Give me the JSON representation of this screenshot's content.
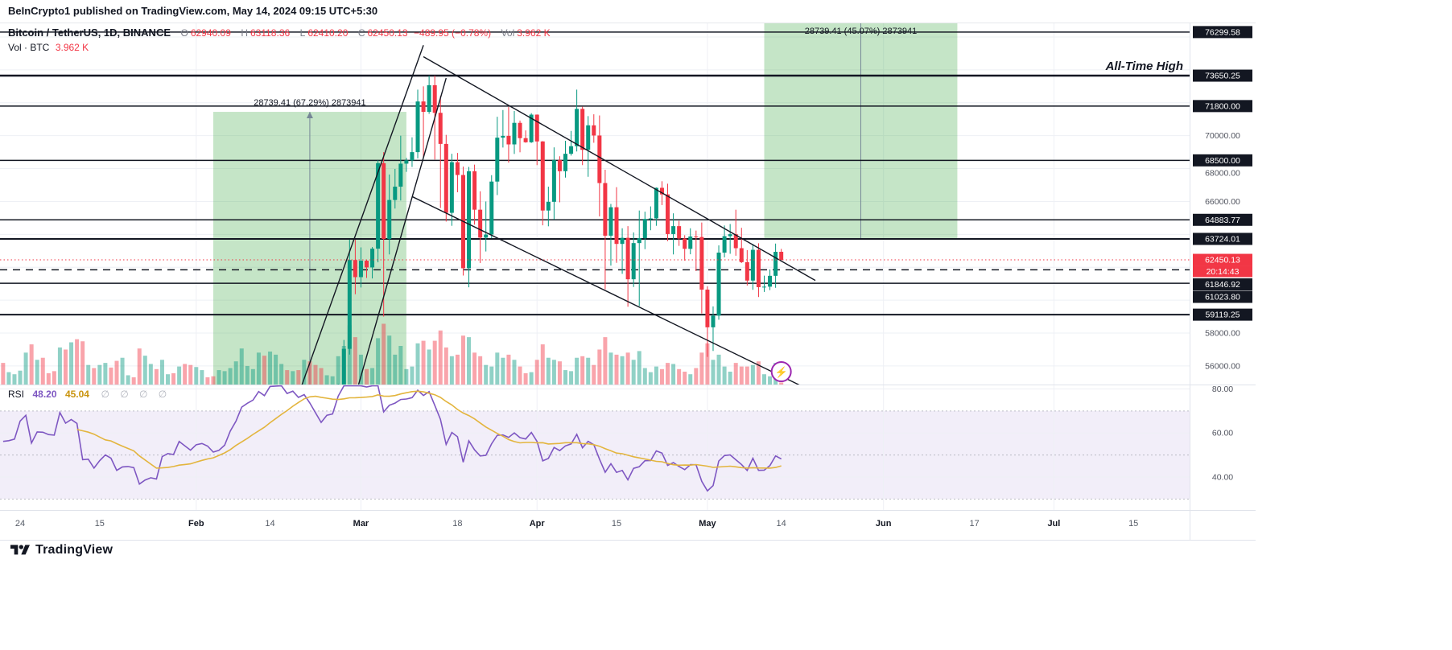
{
  "attribution": "BeInCrypto1 published on TradingView.com, May 14, 2024 09:15 UTC+5:30",
  "legend": {
    "symbol": "Bitcoin / TetherUS, 1D, BINANCE",
    "ohlc": {
      "o_label": "O",
      "o": "62940.09",
      "h_label": "H",
      "h": "63118.36",
      "l_label": "L",
      "l": "62410.20",
      "c_label": "C",
      "c": "62450.13"
    },
    "change": "−489.95 (−0.78%)",
    "vol_label": "Vol",
    "vol": "3.962 K",
    "row2_label": "Vol · BTC",
    "row2_value": "3.962 K"
  },
  "rsi_legend": {
    "name": "RSI",
    "value": "48.20",
    "ma_value": "45.04",
    "extras": "∅ ∅ ∅ ∅"
  },
  "footer": {
    "brand": "TradingView"
  },
  "colors": {
    "up": "#089981",
    "down": "#f23645",
    "vol_up": "rgba(8,153,129,0.45)",
    "vol_down": "rgba(242,54,69,0.45)",
    "box": "rgba(76,175,80,0.32)",
    "line": "#131722",
    "rsi": "#7e57c2",
    "rsi_ma": "#e3b53e",
    "grid": "#eef0f5",
    "band": "rgba(126,87,194,0.10)",
    "marker": "#9c27b0",
    "axis_text": "#50535e"
  },
  "chart_data": {
    "type": "candlestick",
    "title": "Bitcoin / TetherUS, 1D, BINANCE",
    "start_date": "2023-12-28",
    "end_date": "2024-05-14",
    "note": "daily OHLCV, volume in thousands of BTC, values approximate read from chart",
    "ohlcv": [
      [
        43470,
        43800,
        42300,
        42600,
        38
      ],
      [
        42600,
        43110,
        41400,
        42070,
        42
      ],
      [
        42070,
        42600,
        41500,
        42140,
        24
      ],
      [
        42140,
        42900,
        41960,
        42280,
        20
      ],
      [
        42280,
        44180,
        42180,
        44180,
        27
      ],
      [
        44180,
        45880,
        44150,
        44940,
        62
      ],
      [
        44940,
        45500,
        40750,
        42840,
        78
      ],
      [
        42840,
        44730,
        42640,
        44180,
        48
      ],
      [
        44180,
        44350,
        42450,
        44150,
        52
      ],
      [
        44150,
        44210,
        43400,
        43970,
        22
      ],
      [
        43970,
        44470,
        43210,
        43930,
        26
      ],
      [
        43930,
        47210,
        43180,
        46950,
        72
      ],
      [
        46950,
        47970,
        44750,
        46110,
        68
      ],
      [
        46110,
        47700,
        44300,
        46650,
        82
      ],
      [
        46650,
        48970,
        45600,
        46350,
        88
      ],
      [
        46350,
        46510,
        41500,
        42780,
        84
      ],
      [
        42780,
        43250,
        42440,
        42840,
        38
      ],
      [
        42840,
        43080,
        41720,
        41720,
        32
      ],
      [
        41720,
        43400,
        41680,
        42510,
        38
      ],
      [
        42510,
        43580,
        42050,
        43140,
        42
      ],
      [
        43140,
        43200,
        42200,
        42780,
        33
      ],
      [
        42780,
        42930,
        40640,
        41330,
        46
      ],
      [
        41330,
        42150,
        40280,
        41660,
        52
      ],
      [
        41660,
        41870,
        41440,
        41700,
        18
      ],
      [
        41700,
        41880,
        41500,
        41580,
        14
      ],
      [
        41580,
        41690,
        38500,
        39570,
        70
      ],
      [
        39570,
        40170,
        38560,
        39900,
        56
      ],
      [
        39900,
        40110,
        39480,
        40080,
        40
      ],
      [
        40080,
        40300,
        39550,
        39940,
        30
      ],
      [
        39940,
        42200,
        39830,
        41820,
        48
      ],
      [
        41820,
        42190,
        41390,
        42120,
        20
      ],
      [
        42120,
        42840,
        41620,
        42030,
        22
      ],
      [
        42030,
        43310,
        41790,
        43300,
        35
      ],
      [
        43300,
        43880,
        42680,
        42940,
        40
      ],
      [
        42940,
        43740,
        42270,
        42580,
        38
      ],
      [
        42580,
        43250,
        41880,
        43080,
        34
      ],
      [
        43080,
        43440,
        42560,
        43190,
        28
      ],
      [
        43190,
        43350,
        42880,
        43010,
        14
      ],
      [
        43010,
        43120,
        42400,
        42580,
        16
      ],
      [
        42580,
        43550,
        42260,
        42710,
        28
      ],
      [
        42710,
        43400,
        42570,
        43090,
        26
      ],
      [
        43090,
        44380,
        42790,
        44280,
        32
      ],
      [
        44280,
        45600,
        44230,
        45290,
        45
      ],
      [
        45290,
        48170,
        45240,
        47130,
        70
      ],
      [
        47130,
        48200,
        46840,
        47750,
        36
      ],
      [
        47750,
        48550,
        47570,
        48290,
        30
      ],
      [
        48290,
        50330,
        47710,
        49940,
        62
      ],
      [
        49940,
        50370,
        48350,
        49700,
        56
      ],
      [
        49700,
        52070,
        49230,
        51800,
        64
      ],
      [
        51800,
        52820,
        51340,
        51900,
        58
      ],
      [
        51900,
        52580,
        51560,
        52120,
        40
      ],
      [
        52120,
        52190,
        50640,
        51660,
        28
      ],
      [
        51660,
        52380,
        51170,
        52120,
        26
      ],
      [
        52120,
        52490,
        51680,
        51780,
        28
      ],
      [
        51780,
        52930,
        50750,
        52280,
        48
      ],
      [
        52280,
        52370,
        50620,
        51840,
        45
      ],
      [
        51840,
        52070,
        50940,
        51300,
        38
      ],
      [
        51300,
        51540,
        50530,
        50740,
        32
      ],
      [
        50740,
        51700,
        50580,
        51570,
        18
      ],
      [
        51570,
        51960,
        51290,
        51730,
        16
      ],
      [
        51730,
        54910,
        50930,
        54500,
        55
      ],
      [
        54500,
        57580,
        54450,
        57040,
        75
      ],
      [
        57040,
        63680,
        56690,
        62440,
        115
      ],
      [
        62440,
        63670,
        60360,
        61400,
        92
      ],
      [
        61400,
        63210,
        60770,
        62400,
        58
      ],
      [
        62400,
        62470,
        61350,
        61990,
        30
      ],
      [
        61990,
        63230,
        61320,
        63130,
        32
      ],
      [
        63130,
        68500,
        62300,
        68330,
        90
      ],
      [
        68330,
        69000,
        59000,
        63720,
        118
      ],
      [
        63720,
        67640,
        62780,
        66090,
        95
      ],
      [
        66090,
        67980,
        65570,
        66900,
        58
      ],
      [
        66900,
        70000,
        66060,
        68300,
        75
      ],
      [
        68300,
        68650,
        67800,
        68500,
        30
      ],
      [
        68500,
        69900,
        68100,
        69000,
        35
      ],
      [
        69000,
        72800,
        68620,
        72080,
        80
      ],
      [
        72080,
        73000,
        68700,
        71450,
        85
      ],
      [
        71450,
        73650,
        71330,
        73070,
        68
      ],
      [
        73070,
        73650,
        68550,
        71390,
        85
      ],
      [
        71390,
        72420,
        65600,
        69500,
        105
      ],
      [
        69500,
        70050,
        64780,
        65310,
        72
      ],
      [
        65310,
        68900,
        64520,
        68390,
        55
      ],
      [
        68390,
        68950,
        66560,
        67610,
        58
      ],
      [
        67610,
        68120,
        61500,
        61940,
        95
      ],
      [
        61940,
        68100,
        60780,
        67840,
        92
      ],
      [
        67840,
        68240,
        64590,
        65500,
        62
      ],
      [
        65500,
        66620,
        62260,
        63800,
        55
      ],
      [
        63800,
        66000,
        62960,
        63990,
        38
      ],
      [
        63990,
        67600,
        63770,
        67210,
        35
      ],
      [
        67210,
        71150,
        66390,
        69880,
        62
      ],
      [
        69880,
        71560,
        69280,
        69990,
        52
      ],
      [
        69990,
        71750,
        68360,
        69470,
        58
      ],
      [
        69470,
        71500,
        68890,
        70780,
        48
      ],
      [
        70780,
        70920,
        68990,
        69850,
        35
      ],
      [
        69850,
        70320,
        69570,
        69600,
        22
      ],
      [
        69600,
        71370,
        69560,
        71280,
        24
      ],
      [
        71280,
        71290,
        68210,
        69650,
        48
      ],
      [
        69650,
        69670,
        64550,
        65450,
        78
      ],
      [
        65450,
        66900,
        64490,
        65980,
        52
      ],
      [
        65980,
        69290,
        64900,
        68510,
        48
      ],
      [
        68510,
        68750,
        65950,
        67840,
        45
      ],
      [
        67840,
        69690,
        67450,
        68900,
        28
      ],
      [
        68900,
        70290,
        68790,
        69360,
        26
      ],
      [
        69360,
        72800,
        69040,
        71630,
        52
      ],
      [
        71630,
        71760,
        68210,
        69140,
        55
      ],
      [
        69140,
        71190,
        67500,
        70630,
        52
      ],
      [
        70630,
        71300,
        69570,
        70010,
        38
      ],
      [
        70010,
        71230,
        65090,
        67120,
        68
      ],
      [
        67120,
        67930,
        60660,
        63920,
        92
      ],
      [
        63920,
        65850,
        62100,
        65650,
        62
      ],
      [
        65650,
        66870,
        62270,
        63420,
        58
      ],
      [
        63420,
        64370,
        61600,
        63790,
        55
      ],
      [
        63790,
        64500,
        59600,
        61270,
        62
      ],
      [
        61270,
        64120,
        60800,
        63470,
        48
      ],
      [
        63470,
        65450,
        59640,
        63770,
        65
      ],
      [
        63770,
        65380,
        63100,
        64940,
        32
      ],
      [
        64940,
        65700,
        64250,
        64970,
        24
      ],
      [
        64970,
        66850,
        64520,
        66830,
        35
      ],
      [
        66830,
        67230,
        65780,
        66430,
        30
      ],
      [
        66430,
        67080,
        63590,
        64020,
        42
      ],
      [
        64020,
        65280,
        62780,
        64500,
        40
      ],
      [
        64500,
        64820,
        63300,
        63750,
        30
      ],
      [
        63750,
        63950,
        62400,
        63120,
        25
      ],
      [
        63120,
        64370,
        62790,
        63870,
        20
      ],
      [
        63870,
        64230,
        61770,
        63840,
        32
      ],
      [
        63840,
        64720,
        59190,
        60640,
        62
      ],
      [
        60640,
        60840,
        56550,
        58350,
        80
      ],
      [
        58350,
        59620,
        56910,
        59060,
        48
      ],
      [
        59060,
        63330,
        58810,
        62890,
        58
      ],
      [
        62890,
        64540,
        62600,
        63890,
        35
      ],
      [
        63890,
        64630,
        62820,
        64010,
        25
      ],
      [
        64010,
        65500,
        62700,
        63160,
        42
      ],
      [
        63160,
        64400,
        62260,
        62310,
        35
      ],
      [
        62310,
        63040,
        60890,
        61190,
        35
      ],
      [
        61190,
        63420,
        60630,
        63060,
        38
      ],
      [
        63060,
        63460,
        60190,
        60790,
        45
      ],
      [
        60790,
        61490,
        60500,
        60820,
        20
      ],
      [
        60820,
        61870,
        60610,
        61480,
        16
      ],
      [
        61480,
        63440,
        60750,
        62940,
        42
      ],
      [
        62940.09,
        63118.36,
        62410.2,
        62450.13,
        3.962
      ]
    ],
    "price_scale": {
      "min": 54870,
      "max": 76880,
      "gridStep": 2000,
      "plain_ticks": [
        {
          "price": 70000,
          "label": "70000.00"
        },
        {
          "price": 68000,
          "label": "68000.00"
        },
        {
          "price": 66000,
          "label": "66000.00"
        },
        {
          "price": 58000,
          "label": "58000.00"
        },
        {
          "price": 56000,
          "label": "56000.00"
        }
      ]
    },
    "price_lines": [
      {
        "price": 76299.58,
        "label": "76299.58",
        "style": "solid",
        "width": 1.5
      },
      {
        "price": 73650.25,
        "label": "73650.25",
        "style": "solid",
        "width": 2.5,
        "note": "All-Time High"
      },
      {
        "price": 71800.0,
        "label": "71800.00",
        "style": "solid",
        "width": 1.5
      },
      {
        "price": 68500.0,
        "label": "68500.00",
        "style": "solid",
        "width": 1.5
      },
      {
        "price": 64883.77,
        "label": "64883.77",
        "style": "solid",
        "width": 1.5
      },
      {
        "price": 63724.01,
        "label": "63724.01",
        "style": "solid",
        "width": 2
      },
      {
        "price": 61846.92,
        "label": "61846.92",
        "style": "dashed",
        "width": 1.5
      },
      {
        "price": 61023.8,
        "label": "61023.80",
        "style": "solid",
        "width": 1.5
      },
      {
        "price": 59119.25,
        "label": "59119.25",
        "style": "solid",
        "width": 2
      }
    ],
    "current_price": {
      "value": 62450.13,
      "label": "62450.13",
      "countdown": "20:14:43"
    },
    "boxes": [
      {
        "from_day": 38,
        "to_day": 72,
        "price_from": 42709,
        "price_to": 71449,
        "label": "28739.41 (67.29%) 2873941",
        "direction": "up"
      },
      {
        "from_day": 135,
        "to_day": 169,
        "price_from": 63765,
        "price_to": 92504,
        "label": "28739.41 (45.07%) 2873941",
        "direction": "up"
      }
    ],
    "trendlines": [
      {
        "from": [
          46,
          47500
        ],
        "to": [
          75,
          75500
        ]
      },
      {
        "from": [
          55,
          44500
        ],
        "to": [
          79,
          73500
        ]
      },
      {
        "from": [
          75,
          74800
        ],
        "to": [
          144,
          61200
        ]
      },
      {
        "from": [
          73,
          66300
        ],
        "to": [
          145,
          54200
        ]
      }
    ],
    "marker": {
      "day": 138,
      "price": 55650,
      "glyph": "⚡"
    },
    "time_ticks": [
      {
        "day": 4,
        "label": "24"
      },
      {
        "day": 18,
        "label": "15"
      },
      {
        "day": 35,
        "label": "Feb"
      },
      {
        "day": 48,
        "label": "14"
      },
      {
        "day": 64,
        "label": "Mar"
      },
      {
        "day": 81,
        "label": "18"
      },
      {
        "day": 95,
        "label": "Apr"
      },
      {
        "day": 109,
        "label": "15"
      },
      {
        "day": 125,
        "label": "May"
      },
      {
        "day": 138,
        "label": "14"
      },
      {
        "day": 156,
        "label": "Jun"
      },
      {
        "day": 172,
        "label": "17"
      },
      {
        "day": 186,
        "label": "Jul"
      },
      {
        "day": 200,
        "label": "15"
      }
    ],
    "month_grid_days": [
      35,
      64,
      95,
      125,
      156,
      186
    ],
    "rsi": {
      "length": 14,
      "ma_length": 14,
      "scale": {
        "min": 25,
        "max": 82
      },
      "ticks": [
        {
          "value": 80,
          "label": "80.00"
        },
        {
          "value": 60,
          "label": "60.00"
        },
        {
          "value": 40,
          "label": "40.00"
        }
      ],
      "levels": [
        70,
        50,
        30
      ]
    },
    "volume_scale_max": 125
  }
}
